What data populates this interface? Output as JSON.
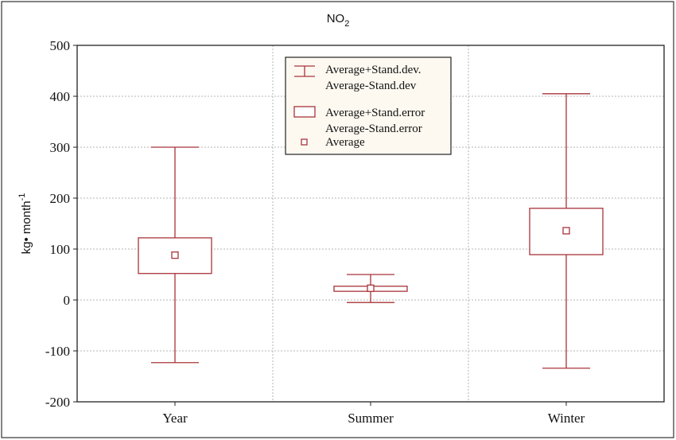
{
  "chart_data": {
    "type": "box",
    "title": "NO",
    "title_subscript": "2",
    "ylabel": "kg• month",
    "ylabel_superscript": "-1",
    "xlabel": "",
    "ylim": [
      -200,
      500
    ],
    "yticks": [
      -200,
      -100,
      0,
      100,
      200,
      300,
      400,
      500
    ],
    "grid": true,
    "legend_position": "top-center",
    "categories": [
      "Year",
      "Summer",
      "Winter"
    ],
    "series": [
      {
        "category": "Year",
        "mean": 88,
        "se_low": 52,
        "se_high": 122,
        "sd_low": -123,
        "sd_high": 300
      },
      {
        "category": "Summer",
        "mean": 23,
        "se_low": 17,
        "se_high": 27,
        "sd_low": -5,
        "sd_high": 50
      },
      {
        "category": "Winter",
        "mean": 136,
        "se_low": 89,
        "se_high": 180,
        "sd_low": -134,
        "sd_high": 405
      }
    ],
    "legend": [
      {
        "symbol": "whisker",
        "lines": [
          "Average+Stand.dev.",
          "Average-Stand.dev"
        ]
      },
      {
        "symbol": "box",
        "lines": [
          "Average+Stand.error",
          "Average-Stand.error"
        ]
      },
      {
        "symbol": "point",
        "lines": [
          "Average"
        ]
      }
    ],
    "colors": {
      "mark": "#a8343a",
      "legend_bg": "#fdf9f0",
      "grid": "#b5b5b5"
    }
  }
}
